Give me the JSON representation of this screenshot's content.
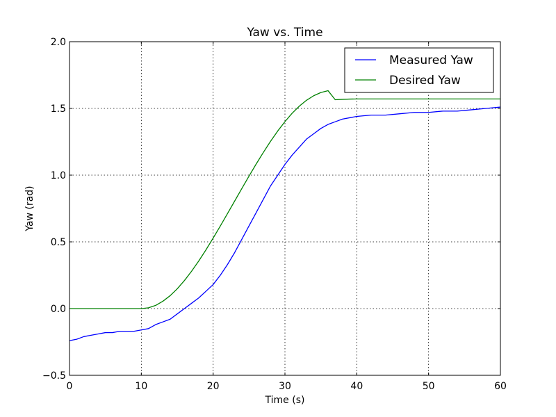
{
  "chart_data": {
    "type": "line",
    "title": "Yaw vs. Time",
    "xlabel": "Time (s)",
    "ylabel": "Yaw (rad)",
    "xlim": [
      0,
      60
    ],
    "ylim": [
      -0.5,
      2.0
    ],
    "xticks": [
      0,
      10,
      20,
      30,
      40,
      50,
      60
    ],
    "yticks": [
      -0.5,
      0.0,
      0.5,
      1.0,
      1.5,
      2.0
    ],
    "xtick_labels": [
      "0",
      "10",
      "20",
      "30",
      "40",
      "50",
      "60"
    ],
    "ytick_labels": [
      "−0.5",
      "0.0",
      "0.5",
      "1.0",
      "1.5",
      "2.0"
    ],
    "grid": true,
    "legend_position": "top-right",
    "series": [
      {
        "name": "Measured Yaw",
        "color": "#0000ff",
        "x": [
          0,
          1,
          2,
          3,
          4,
          5,
          6,
          7,
          8,
          9,
          10,
          11,
          12,
          13,
          14,
          15,
          16,
          17,
          18,
          19,
          20,
          21,
          22,
          23,
          24,
          25,
          26,
          27,
          28,
          29,
          30,
          31,
          32,
          33,
          34,
          35,
          36,
          37,
          38,
          39,
          40,
          42,
          44,
          46,
          48,
          50,
          52,
          54,
          56,
          58,
          60
        ],
        "y": [
          -0.24,
          -0.23,
          -0.21,
          -0.2,
          -0.19,
          -0.18,
          -0.18,
          -0.17,
          -0.17,
          -0.17,
          -0.16,
          -0.15,
          -0.12,
          -0.1,
          -0.08,
          -0.04,
          0.0,
          0.04,
          0.08,
          0.13,
          0.18,
          0.25,
          0.33,
          0.42,
          0.52,
          0.62,
          0.72,
          0.82,
          0.92,
          1.0,
          1.08,
          1.15,
          1.21,
          1.27,
          1.31,
          1.35,
          1.38,
          1.4,
          1.42,
          1.43,
          1.44,
          1.45,
          1.45,
          1.46,
          1.47,
          1.47,
          1.48,
          1.48,
          1.49,
          1.5,
          1.51
        ]
      },
      {
        "name": "Desired Yaw",
        "color": "#008000",
        "x": [
          0,
          2,
          4,
          6,
          8,
          10,
          11,
          12,
          13,
          14,
          15,
          16,
          17,
          18,
          19,
          20,
          21,
          22,
          23,
          24,
          25,
          26,
          27,
          28,
          29,
          30,
          31,
          32,
          33,
          34,
          35,
          36,
          37,
          38,
          39,
          40,
          45,
          50,
          55,
          60
        ],
        "y": [
          0.0,
          0.0,
          0.0,
          0.0,
          0.0,
          0.0,
          0.006,
          0.024,
          0.055,
          0.096,
          0.148,
          0.21,
          0.28,
          0.357,
          0.44,
          0.528,
          0.619,
          0.712,
          0.806,
          0.9,
          0.993,
          1.084,
          1.171,
          1.254,
          1.331,
          1.401,
          1.464,
          1.517,
          1.561,
          1.595,
          1.619,
          1.633,
          1.565,
          1.568,
          1.57,
          1.571,
          1.571,
          1.571,
          1.571,
          1.571
        ]
      }
    ]
  }
}
